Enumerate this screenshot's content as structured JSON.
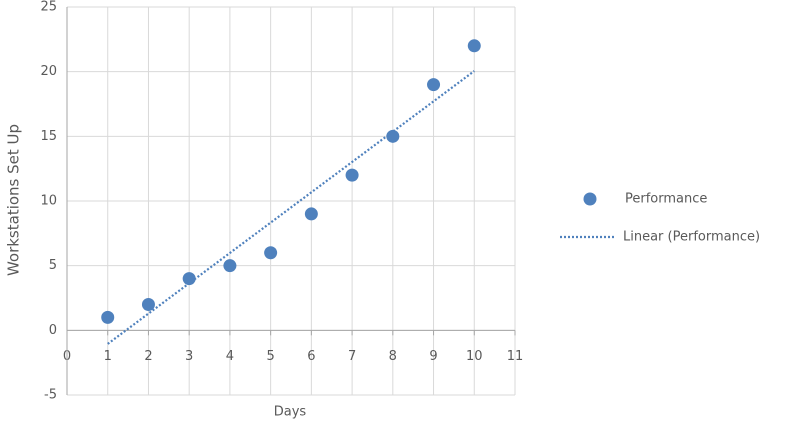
{
  "chart_data": {
    "type": "scatter",
    "x_label": "Days",
    "y_label": "Workstations Set Up",
    "series": [
      {
        "name": "Performance",
        "color": "#4f81bd",
        "x": [
          1,
          2,
          3,
          4,
          5,
          6,
          7,
          8,
          9,
          10
        ],
        "values": [
          1,
          2,
          4,
          5,
          6,
          9,
          12,
          15,
          19,
          22
        ]
      },
      {
        "name": "Linear (Performance)",
        "color": "#4f81bd",
        "line": "dotted",
        "x": [
          1,
          10
        ],
        "values": [
          -1.05,
          20.05
        ]
      }
    ],
    "xlim": [
      0,
      11
    ],
    "xticks": [
      0,
      1,
      2,
      3,
      4,
      5,
      6,
      7,
      8,
      9,
      10,
      11
    ],
    "ylim": [
      -5,
      25
    ],
    "yticks": [
      -5,
      0,
      5,
      10,
      15,
      20,
      25
    ],
    "grid": true,
    "legend": "right"
  }
}
